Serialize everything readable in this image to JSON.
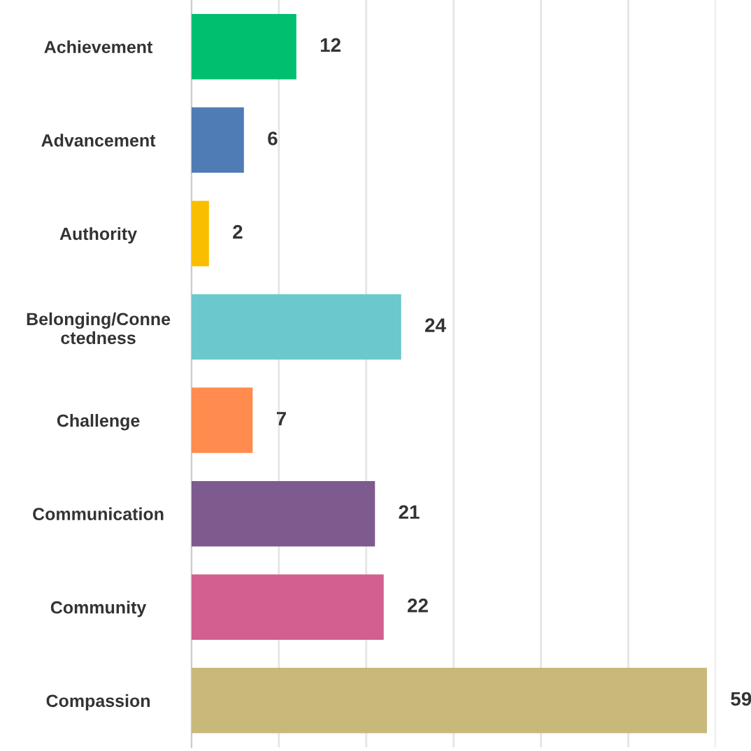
{
  "chart_data": {
    "type": "bar",
    "orientation": "horizontal",
    "categories": [
      "Achievement",
      "Advancement",
      "Authority",
      "Belonging/Connectedness",
      "Challenge",
      "Communication",
      "Community",
      "Compassion"
    ],
    "values": [
      12,
      6,
      2,
      24,
      7,
      21,
      22,
      59
    ],
    "colors": [
      "#00bf6f",
      "#507cb6",
      "#f9be00",
      "#6bc8cd",
      "#ff8b4f",
      "#7d5b8e",
      "#d25f90",
      "#c8b97a"
    ],
    "xlim": [
      0,
      60
    ],
    "xticks": [
      {
        "value": 0,
        "label": null
      },
      {
        "value": 10,
        "label": null
      },
      {
        "value": 20,
        "label": null
      },
      {
        "value": 30,
        "label": null
      },
      {
        "value": 40,
        "label": null
      },
      {
        "value": 50,
        "label": null
      },
      {
        "value": 60,
        "label": null
      }
    ],
    "grid": "x",
    "tick_labels": "y",
    "data_labels": true
  }
}
